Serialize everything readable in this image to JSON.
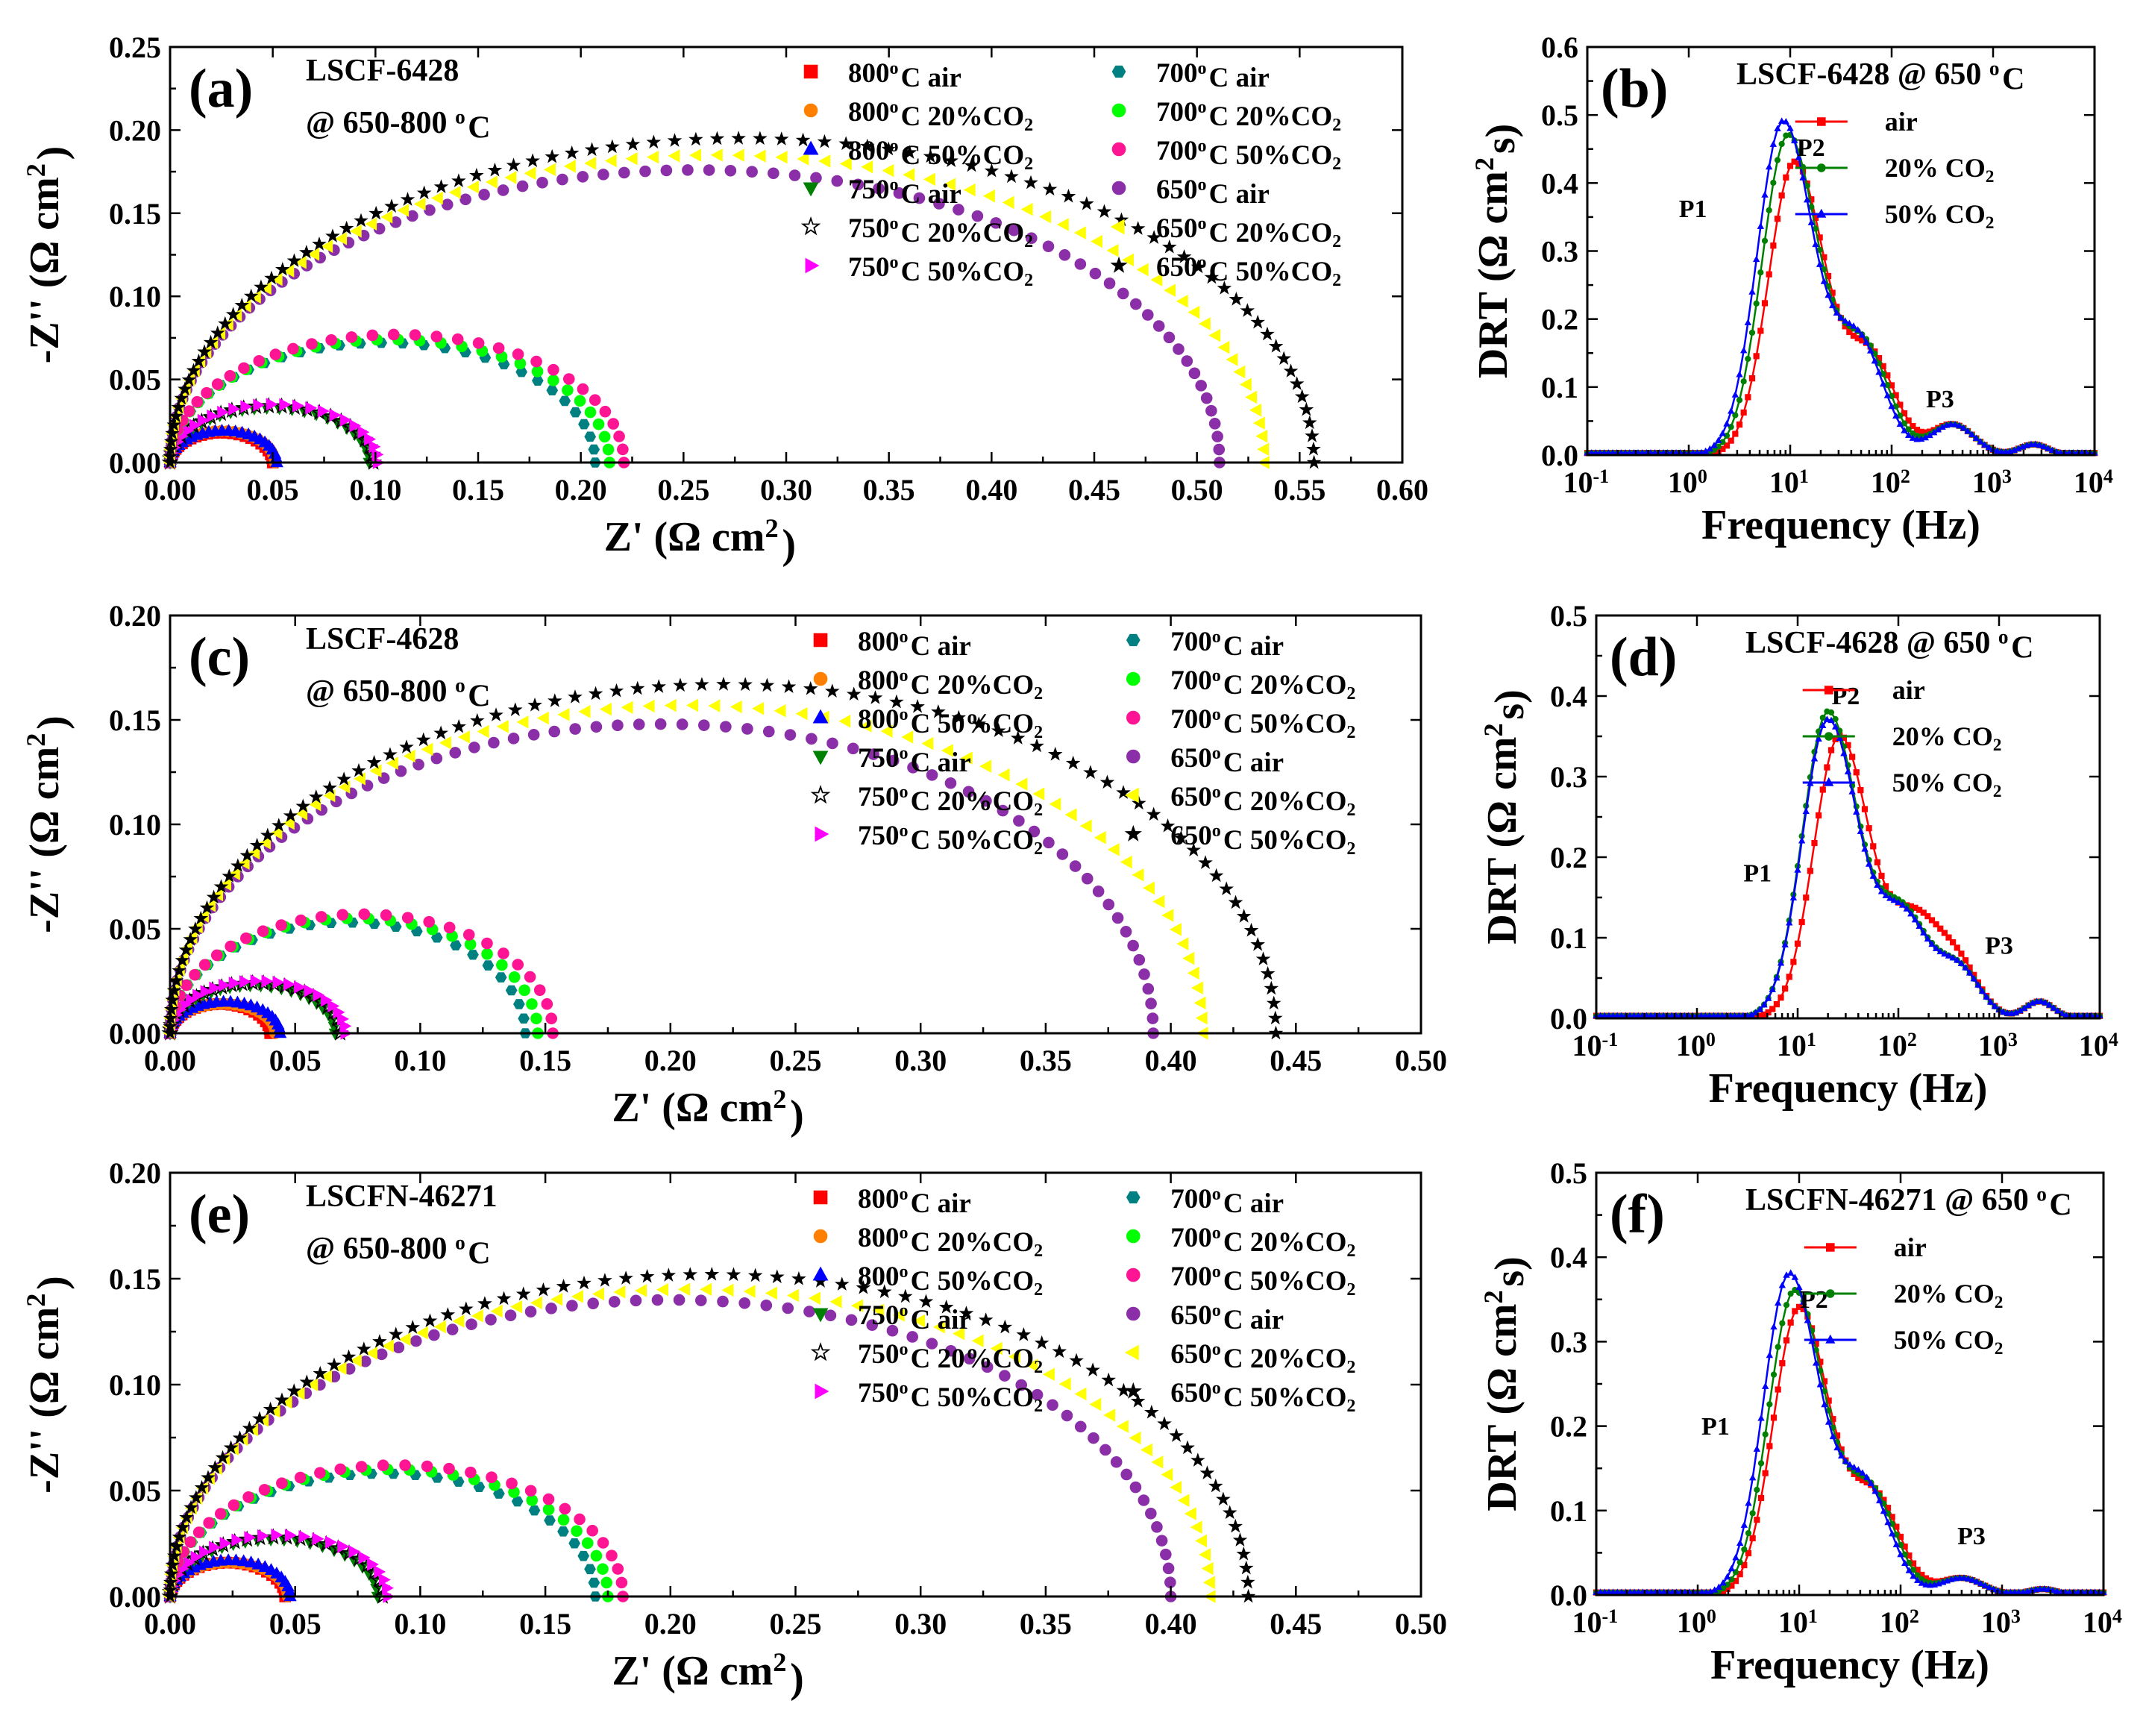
{
  "chart_data": [
    {
      "id": "a",
      "type": "scatter",
      "panel_label": "(a)",
      "title_lines": [
        "LSCF-6428",
        "@ 650-800 °C"
      ],
      "xlabel": "Z' (Ω cm²)",
      "ylabel": "-Z'' (Ω cm²)",
      "xlim": [
        0,
        0.6
      ],
      "ylim": [
        0,
        0.25
      ],
      "xticks": [
        "0.00",
        "0.05",
        "0.10",
        "0.15",
        "0.20",
        "0.25",
        "0.30",
        "0.35",
        "0.40",
        "0.45",
        "0.50",
        "0.55",
        "0.60"
      ],
      "yticks": [
        "0.00",
        "0.05",
        "0.10",
        "0.15",
        "0.20",
        "0.25"
      ],
      "series": [
        {
          "name": "800°C air",
          "color": "#ff0000",
          "marker": "square",
          "z0": 0.0,
          "r_end": 0.05,
          "peak": 0.018
        },
        {
          "name": "800°C 20%CO₂",
          "color": "#ff8000",
          "marker": "circle",
          "z0": 0.0,
          "r_end": 0.051,
          "peak": 0.019
        },
        {
          "name": "800°C 50%CO₂",
          "color": "#0000ff",
          "marker": "triangle-up",
          "z0": 0.0,
          "r_end": 0.052,
          "peak": 0.019
        },
        {
          "name": "750°C air",
          "color": "#008000",
          "marker": "triangle-down",
          "z0": 0.0,
          "r_end": 0.097,
          "peak": 0.033
        },
        {
          "name": "750°C 20%CO₂",
          "color": "#000000",
          "marker": "star-open",
          "z0": 0.0,
          "r_end": 0.099,
          "peak": 0.034
        },
        {
          "name": "750°C 50%CO₂",
          "color": "#ff00ff",
          "marker": "triangle-right",
          "z0": 0.0,
          "r_end": 0.101,
          "peak": 0.035
        },
        {
          "name": "700°C air",
          "color": "#008080",
          "marker": "hexagon",
          "z0": 0.0,
          "r_end": 0.207,
          "peak": 0.072
        },
        {
          "name": "700°C 20%CO₂",
          "color": "#00ff00",
          "marker": "circle",
          "z0": 0.0,
          "r_end": 0.214,
          "peak": 0.074
        },
        {
          "name": "700°C 50%CO₂",
          "color": "#ff1493",
          "marker": "circle",
          "z0": 0.0,
          "r_end": 0.221,
          "peak": 0.077
        },
        {
          "name": "650°C air",
          "color": "#8b2fa8",
          "marker": "circle",
          "z0": 0.0,
          "r_end": 0.511,
          "peak": 0.176
        },
        {
          "name": "650°C 20%CO₂",
          "color": "#ffff00",
          "marker": "triangle-left",
          "z0": 0.0,
          "r_end": 0.533,
          "peak": 0.185
        },
        {
          "name": "650°C 50%CO₂",
          "color": "#000000",
          "marker": "star",
          "z0": 0.0,
          "r_end": 0.557,
          "peak": 0.195
        }
      ]
    },
    {
      "id": "b",
      "type": "line",
      "panel_label": "(b)",
      "title": "LSCF-6428 @ 650 °C",
      "xlabel": "Frequency (Hz)",
      "ylabel": "DRT (Ω cm²s)",
      "xscale": "log",
      "xlim": [
        0.1,
        10000
      ],
      "ylim": [
        0,
        0.6
      ],
      "xticks": [
        "10⁻¹",
        "10⁰",
        "10¹",
        "10²",
        "10³",
        "10⁴"
      ],
      "yticks": [
        "0.0",
        "0.1",
        "0.2",
        "0.3",
        "0.4",
        "0.5",
        "0.6"
      ],
      "peak_labels": [
        {
          "text": "P1",
          "color": "#ff0000",
          "f": 1.1,
          "v": 0.35
        },
        {
          "text": "P2",
          "color": "#008000",
          "f": 16,
          "v": 0.44
        },
        {
          "text": "P3",
          "color": "#0000ff",
          "f": 300,
          "v": 0.07
        }
      ],
      "series": [
        {
          "name": "air",
          "color": "#ff0000",
          "marker": "square",
          "peak_f": 11.0,
          "peak_v": 0.43,
          "p3_v": 0.045
        },
        {
          "name": "20% CO₂",
          "color": "#008000",
          "marker": "circle",
          "peak_f": 9.5,
          "peak_v": 0.47,
          "p3_v": 0.045
        },
        {
          "name": "50% CO₂",
          "color": "#0000ff",
          "marker": "triangle-up",
          "peak_f": 8.5,
          "peak_v": 0.49,
          "p3_v": 0.045
        }
      ]
    },
    {
      "id": "c",
      "type": "scatter",
      "panel_label": "(c)",
      "title_lines": [
        "LSCF-4628",
        "@ 650-800 °C"
      ],
      "xlabel": "Z' (Ω cm²)",
      "ylabel": "-Z'' (Ω cm²)",
      "xlim": [
        0,
        0.5
      ],
      "ylim": [
        0,
        0.2
      ],
      "xticks": [
        "0.00",
        "0.05",
        "0.10",
        "0.15",
        "0.20",
        "0.25",
        "0.30",
        "0.35",
        "0.40",
        "0.45",
        "0.50"
      ],
      "yticks": [
        "0.00",
        "0.05",
        "0.10",
        "0.15",
        "0.20"
      ],
      "series": [
        {
          "name": "800°C air",
          "color": "#ff0000",
          "marker": "square",
          "z0": 0.0,
          "r_end": 0.04,
          "peak": 0.014
        },
        {
          "name": "800°C 20%CO₂",
          "color": "#ff8000",
          "marker": "circle",
          "z0": 0.0,
          "r_end": 0.042,
          "peak": 0.014
        },
        {
          "name": "800°C 50%CO₂",
          "color": "#0000ff",
          "marker": "triangle-up",
          "z0": 0.0,
          "r_end": 0.044,
          "peak": 0.015
        },
        {
          "name": "750°C air",
          "color": "#008000",
          "marker": "triangle-down",
          "z0": 0.0,
          "r_end": 0.066,
          "peak": 0.023
        },
        {
          "name": "750°C 20%CO₂",
          "color": "#000000",
          "marker": "star-open",
          "z0": 0.0,
          "r_end": 0.068,
          "peak": 0.024
        },
        {
          "name": "750°C 50%CO₂",
          "color": "#ff00ff",
          "marker": "triangle-right",
          "z0": 0.0,
          "r_end": 0.07,
          "peak": 0.025
        },
        {
          "name": "700°C air",
          "color": "#008080",
          "marker": "hexagon",
          "z0": 0.0,
          "r_end": 0.142,
          "peak": 0.053
        },
        {
          "name": "700°C 20%CO₂",
          "color": "#00ff00",
          "marker": "circle",
          "z0": 0.0,
          "r_end": 0.147,
          "peak": 0.055
        },
        {
          "name": "700°C 50%CO₂",
          "color": "#ff1493",
          "marker": "circle",
          "z0": 0.0,
          "r_end": 0.153,
          "peak": 0.057
        },
        {
          "name": "650°C air",
          "color": "#8b2fa8",
          "marker": "circle",
          "z0": 0.0,
          "r_end": 0.393,
          "peak": 0.148
        },
        {
          "name": "650°C 20%CO₂",
          "color": "#ffff00",
          "marker": "triangle-left",
          "z0": 0.0,
          "r_end": 0.413,
          "peak": 0.157
        },
        {
          "name": "650°C 50%CO₂",
          "color": "#000000",
          "marker": "star",
          "z0": 0.0,
          "r_end": 0.442,
          "peak": 0.167
        }
      ]
    },
    {
      "id": "d",
      "type": "line",
      "panel_label": "(d)",
      "title": "LSCF-4628 @ 650 °C",
      "xlabel": "Frequency (Hz)",
      "ylabel": "DRT (Ω cm²s)",
      "xscale": "log",
      "xlim": [
        0.1,
        10000
      ],
      "ylim": [
        0,
        0.5
      ],
      "xticks": [
        "10⁻¹",
        "10⁰",
        "10¹",
        "10²",
        "10³",
        "10⁴"
      ],
      "yticks": [
        "0.0",
        "0.1",
        "0.2",
        "0.3",
        "0.4",
        "0.5"
      ],
      "peak_labels": [
        {
          "text": "P1",
          "color": "#ff0000",
          "f": 4.0,
          "v": 0.17
        },
        {
          "text": "P2",
          "color": "#008000",
          "f": 30,
          "v": 0.39
        },
        {
          "text": "P3",
          "color": "#0000ff",
          "f": 1000,
          "v": 0.08
        }
      ],
      "series": [
        {
          "name": "air",
          "color": "#ff0000",
          "marker": "square",
          "peak_f": 26,
          "peak_v": 0.35,
          "p3_v": 0.06
        },
        {
          "name": "20% CO₂",
          "color": "#008000",
          "marker": "circle",
          "peak_f": 20,
          "peak_v": 0.38,
          "p3_v": 0.06
        },
        {
          "name": "50% CO₂",
          "color": "#0000ff",
          "marker": "triangle-up",
          "peak_f": 20,
          "peak_v": 0.37,
          "p3_v": 0.06
        }
      ]
    },
    {
      "id": "e",
      "type": "scatter",
      "panel_label": "(e)",
      "title_lines": [
        "LSCFN-46271",
        "@ 650-800 °C"
      ],
      "xlabel": "Z' (Ω cm²)",
      "ylabel": "-Z'' (Ω cm²)",
      "xlim": [
        0,
        0.5
      ],
      "ylim": [
        0,
        0.2
      ],
      "xticks": [
        "0.00",
        "0.05",
        "0.10",
        "0.15",
        "0.20",
        "0.25",
        "0.30",
        "0.35",
        "0.40",
        "0.45",
        "0.50"
      ],
      "yticks": [
        "0.00",
        "0.05",
        "0.10",
        "0.15",
        "0.20"
      ],
      "series": [
        {
          "name": "800°C air",
          "color": "#ff0000",
          "marker": "square",
          "z0": 0.0,
          "r_end": 0.046,
          "peak": 0.016
        },
        {
          "name": "800°C 20%CO₂",
          "color": "#ff8000",
          "marker": "circle",
          "z0": 0.0,
          "r_end": 0.047,
          "peak": 0.016
        },
        {
          "name": "800°C 50%CO₂",
          "color": "#0000ff",
          "marker": "triangle-up",
          "z0": 0.0,
          "r_end": 0.048,
          "peak": 0.017
        },
        {
          "name": "750°C air",
          "color": "#008000",
          "marker": "triangle-down",
          "z0": 0.0,
          "r_end": 0.083,
          "peak": 0.027
        },
        {
          "name": "750°C 20%CO₂",
          "color": "#000000",
          "marker": "star-open",
          "z0": 0.0,
          "r_end": 0.085,
          "peak": 0.028
        },
        {
          "name": "750°C 50%CO₂",
          "color": "#ff00ff",
          "marker": "triangle-right",
          "z0": 0.0,
          "r_end": 0.087,
          "peak": 0.029
        },
        {
          "name": "700°C air",
          "color": "#008080",
          "marker": "hexagon",
          "z0": 0.0,
          "r_end": 0.17,
          "peak": 0.058
        },
        {
          "name": "700°C 20%CO₂",
          "color": "#00ff00",
          "marker": "circle",
          "z0": 0.0,
          "r_end": 0.175,
          "peak": 0.06
        },
        {
          "name": "700°C 50%CO₂",
          "color": "#ff1493",
          "marker": "circle",
          "z0": 0.0,
          "r_end": 0.181,
          "peak": 0.062
        },
        {
          "name": "650°C air",
          "color": "#8b2fa8",
          "marker": "circle",
          "z0": 0.0,
          "r_end": 0.4,
          "peak": 0.14
        },
        {
          "name": "650°C 20%CO₂",
          "color": "#ffff00",
          "marker": "triangle-left",
          "z0": 0.0,
          "r_end": 0.416,
          "peak": 0.145
        },
        {
          "name": "650°C 50%CO₂",
          "color": "#000000",
          "marker": "star",
          "z0": 0.0,
          "r_end": 0.431,
          "peak": 0.152
        }
      ]
    },
    {
      "id": "f",
      "type": "line",
      "panel_label": "(f)",
      "title": "LSCFN-46271 @ 650 °C",
      "xlabel": "Frequency (Hz)",
      "ylabel": "DRT (Ω cm²s)",
      "xscale": "log",
      "xlim": [
        0.1,
        10000
      ],
      "ylim": [
        0,
        0.5
      ],
      "xticks": [
        "10⁻¹",
        "10⁰",
        "10¹",
        "10²",
        "10³",
        "10⁴"
      ],
      "yticks": [
        "0.0",
        "0.1",
        "0.2",
        "0.3",
        "0.4",
        "0.5"
      ],
      "peak_labels": [
        {
          "text": "P1",
          "color": "#ff0000",
          "f": 1.5,
          "v": 0.19
        },
        {
          "text": "P2",
          "color": "#008000",
          "f": 14,
          "v": 0.34
        },
        {
          "text": "P3",
          "color": "#0000ff",
          "f": 500,
          "v": 0.06
        }
      ],
      "series": [
        {
          "name": "air",
          "color": "#ff0000",
          "marker": "square",
          "peak_f": 10,
          "peak_v": 0.34,
          "p3_v": 0.02
        },
        {
          "name": "20% CO₂",
          "color": "#008000",
          "marker": "circle",
          "peak_f": 9,
          "peak_v": 0.36,
          "p3_v": 0.02
        },
        {
          "name": "50% CO₂",
          "color": "#0000ff",
          "marker": "triangle-up",
          "peak_f": 8,
          "peak_v": 0.38,
          "p3_v": 0.02
        }
      ]
    }
  ]
}
